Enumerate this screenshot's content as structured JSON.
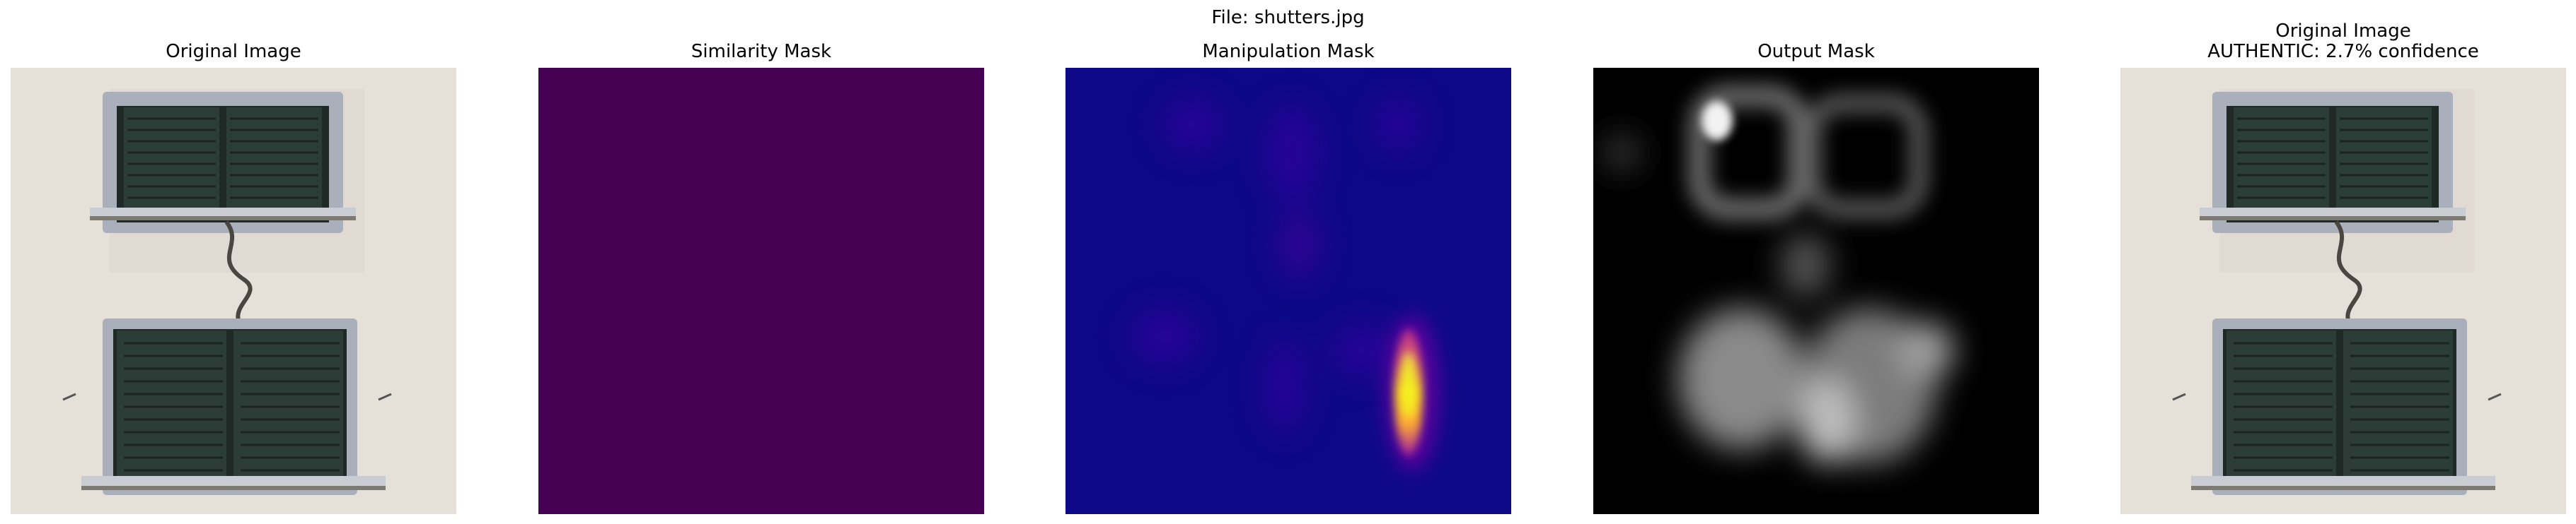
{
  "figure": {
    "title": "File: shutters.jpg"
  },
  "panels": [
    {
      "title_lines": [
        "Original Image"
      ]
    },
    {
      "title_lines": [
        "Similarity Mask"
      ],
      "fill_color": "#440154"
    },
    {
      "title_lines": [
        "Manipulation Mask"
      ],
      "colormap": "plasma"
    },
    {
      "title_lines": [
        "Output Mask"
      ],
      "colormap": "gray"
    },
    {
      "title_lines": [
        "Original Image",
        "AUTHENTIC: 2.7% confidence"
      ]
    }
  ]
}
